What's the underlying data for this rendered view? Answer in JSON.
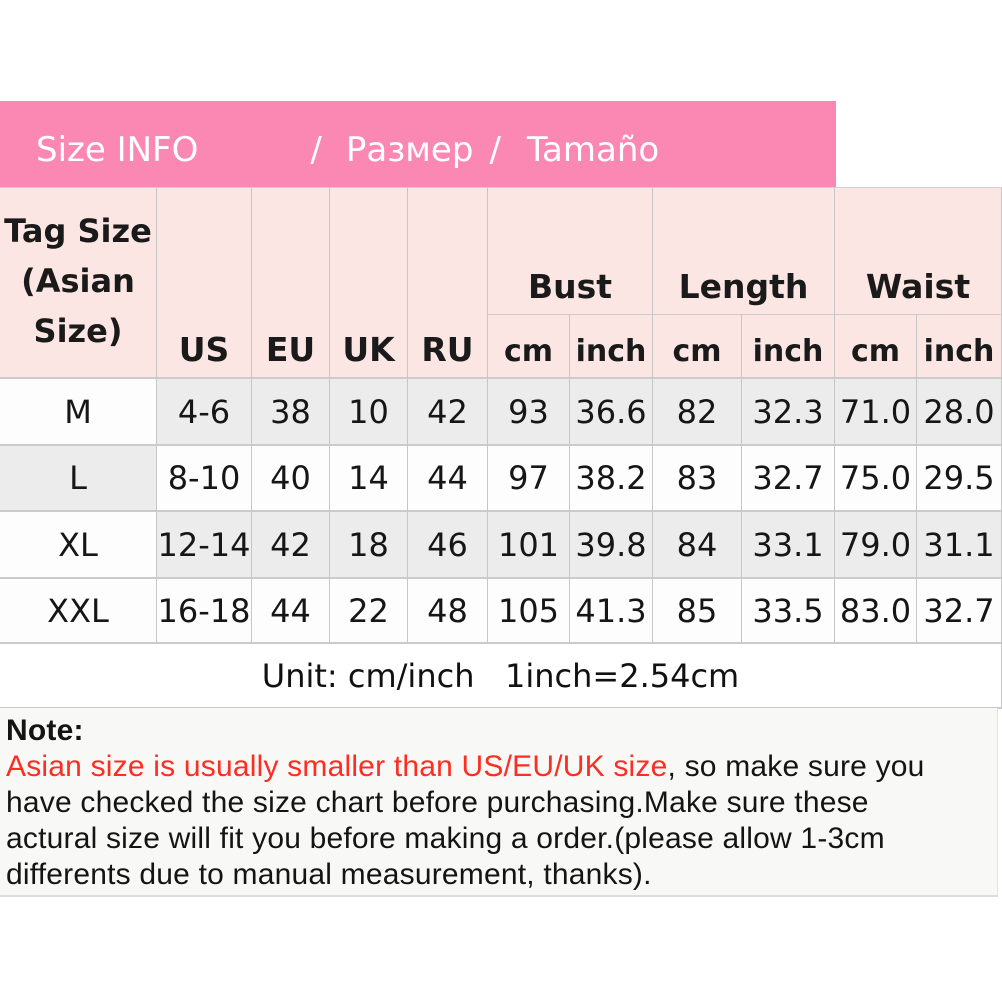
{
  "title_bar": {
    "segments": [
      "Size INFO",
      "/",
      "Размер",
      "/",
      "Tamaño"
    ],
    "bg_color": "#fb88b3",
    "text_color": "#ffffff"
  },
  "size_chart": {
    "corner_header": "Tag Size\n(Asian\nSize)",
    "region_headers": [
      "US",
      "EU",
      "UK",
      "RU"
    ],
    "measurement_groups": [
      "Bust",
      "Length",
      "Waist"
    ],
    "unit_headers": [
      "cm",
      "inch",
      "cm",
      "inch",
      "cm",
      "inch"
    ],
    "rows": [
      {
        "tag": "M",
        "values": [
          "4-6",
          "38",
          "10",
          "42",
          "93",
          "36.6",
          "82",
          "32.3",
          "71.0",
          "28.0"
        ]
      },
      {
        "tag": "L",
        "values": [
          "8-10",
          "40",
          "14",
          "44",
          "97",
          "38.2",
          "83",
          "32.7",
          "75.0",
          "29.5"
        ]
      },
      {
        "tag": "XL",
        "values": [
          "12-14",
          "42",
          "18",
          "46",
          "101",
          "39.8",
          "84",
          "33.1",
          "79.0",
          "31.1"
        ]
      },
      {
        "tag": "XXL",
        "values": [
          "16-18",
          "44",
          "22",
          "48",
          "105",
          "41.3",
          "85",
          "33.5",
          "83.0",
          "32.7"
        ]
      }
    ],
    "unit_note": "Unit: cm/inch   1inch=2.54cm",
    "header_bg_color": "#fce6e3",
    "shaded_cell_color": "#ececec",
    "border_color": "#c6c6c6"
  },
  "note": {
    "heading": "Note:",
    "line1": {
      "highlight": "Asian size is usually smaller than US/EU/UK size",
      "rest": ", so make sure you"
    },
    "line2": "have checked the size chart before purchasing.Make sure these",
    "line3": "actural size will fit you before making a order.(please allow 1-3cm",
    "line4": "differents due to manual measurement, thanks).",
    "highlight_color": "#fc2d21"
  }
}
